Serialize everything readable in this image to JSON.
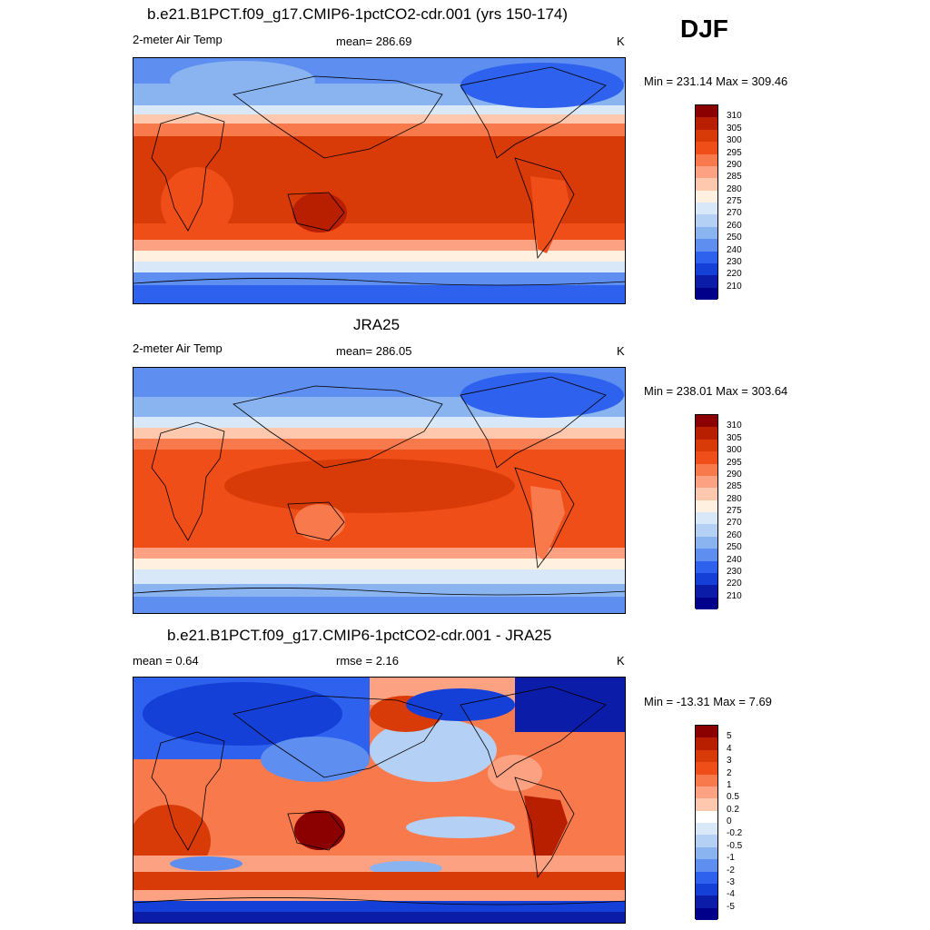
{
  "season": "DJF",
  "panels": [
    {
      "title": "b.e21.B1PCT.f09_g17.CMIP6-1pctCO2-cdr.001 (yrs 150-174)",
      "left_label": "2-meter Air Temp",
      "center_label": "mean= 286.69",
      "units": "K",
      "minmax": "Min = 231.14 Max = 309.46"
    },
    {
      "title": "JRA25",
      "left_label": "2-meter Air Temp",
      "center_label": "mean= 286.05",
      "units": "K",
      "minmax": "Min = 238.01 Max = 303.64"
    },
    {
      "title": "b.e21.B1PCT.f09_g17.CMIP6-1pctCO2-cdr.001 - JRA25",
      "left_label": "mean =   0.64",
      "center_label": "rmse =   2.16",
      "units": "K",
      "minmax": "Min = -13.31 Max =   7.69"
    }
  ],
  "colorbar_temp": {
    "labels": [
      "310",
      "305",
      "300",
      "295",
      "290",
      "285",
      "280",
      "275",
      "270",
      "260",
      "250",
      "240",
      "230",
      "220",
      "210"
    ],
    "colors": [
      "#8b0000",
      "#b81e00",
      "#d83a08",
      "#f04e18",
      "#f87a4c",
      "#fca282",
      "#fdc8ae",
      "#fff0e0",
      "#d8e8f8",
      "#b4d0f4",
      "#8ab4f0",
      "#5e8ef0",
      "#2e62ee",
      "#1440d8",
      "#0a1ca8",
      "#00008b"
    ]
  },
  "colorbar_diff": {
    "labels": [
      "5",
      "4",
      "3",
      "2",
      "1",
      "0.5",
      "0.2",
      "0",
      "-0.2",
      "-0.5",
      "-1",
      "-2",
      "-3",
      "-4",
      "-5"
    ],
    "colors": [
      "#8b0000",
      "#b81e00",
      "#d83a08",
      "#f04e18",
      "#f87a4c",
      "#fca282",
      "#fdc8ae",
      "#ffffff",
      "#d8e8f8",
      "#b4d0f4",
      "#8ab4f0",
      "#5e8ef0",
      "#2e62ee",
      "#1440d8",
      "#0a1ca8",
      "#00008b"
    ]
  }
}
